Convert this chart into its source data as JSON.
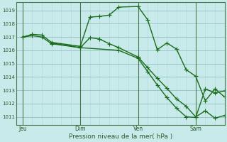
{
  "xlabel": "Pression niveau de la mer( hPa )",
  "bg_color": "#c8eaea",
  "line_color": "#1a6b1a",
  "grid_minor_color": "#b0d8d8",
  "grid_major_color": "#90c0c0",
  "ylim": [
    1010.4,
    1019.6
  ],
  "yticks": [
    1011,
    1012,
    1013,
    1014,
    1015,
    1016,
    1017,
    1018,
    1019
  ],
  "day_labels": [
    "Jeu",
    "Dim",
    "Ven",
    "Sam"
  ],
  "day_positions": [
    0,
    72,
    144,
    216
  ],
  "xlim": [
    -8,
    252
  ],
  "line1_x": [
    0,
    12,
    24,
    36,
    72,
    84,
    96,
    108,
    120,
    144,
    156,
    168,
    180,
    192,
    204,
    216,
    228,
    240,
    252
  ],
  "line1_y": [
    1017.0,
    1017.2,
    1017.15,
    1016.6,
    1016.3,
    1018.5,
    1018.55,
    1018.65,
    1019.25,
    1019.3,
    1018.3,
    1016.05,
    1016.55,
    1016.1,
    1014.55,
    1014.05,
    1012.2,
    1013.1,
    1012.5
  ],
  "line2_x": [
    0,
    12,
    24,
    36,
    72,
    84,
    96,
    108,
    120,
    144,
    156,
    168,
    180,
    192,
    204,
    216,
    228,
    240,
    252
  ],
  "line2_y": [
    1017.0,
    1017.1,
    1017.0,
    1016.5,
    1016.2,
    1016.95,
    1016.85,
    1016.5,
    1016.2,
    1015.5,
    1014.7,
    1013.9,
    1013.15,
    1012.35,
    1011.8,
    1011.0,
    1011.45,
    1010.9,
    1011.1
  ],
  "line3_x": [
    36,
    72,
    120,
    144,
    156,
    168,
    180,
    192,
    204,
    216,
    228,
    240,
    252
  ],
  "line3_y": [
    1016.55,
    1016.2,
    1016.0,
    1015.4,
    1014.4,
    1013.4,
    1012.45,
    1011.65,
    1011.0,
    1010.95,
    1013.1,
    1012.8,
    1012.95
  ],
  "marker_size": 2.8,
  "line_width": 1.0
}
